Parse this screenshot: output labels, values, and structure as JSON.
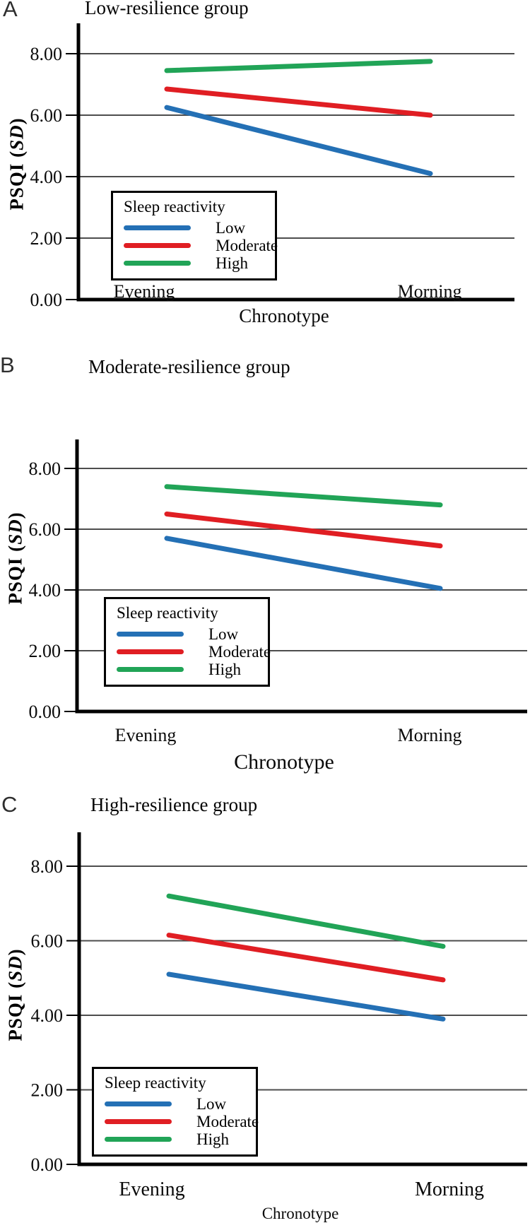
{
  "figure": {
    "y_axis_label": {
      "prefix": "PSQI (",
      "italic": "SD",
      "suffix": ")"
    },
    "x_axis_label": "Chronotype",
    "legend_title": "Sleep reactivity",
    "colors": {
      "low": "#2470b5",
      "moderate": "#e01e23",
      "high": "#21a457",
      "grid": "#4d4d4d",
      "axis": "#000000"
    }
  },
  "chart_data": [
    {
      "type": "line",
      "panel": "A",
      "title": "Low-resilience group",
      "xlabel": "Chronotype",
      "ylabel": "PSQI (SD)",
      "categories": [
        "Evening",
        "Morning"
      ],
      "yticks": [
        "0.00",
        "2.00",
        "4.00",
        "6.00",
        "8.00"
      ],
      "ylim": [
        0,
        9
      ],
      "grid": true,
      "legend_title": "Sleep reactivity",
      "legend_position": "lower-left",
      "series": [
        {
          "name": "Low",
          "color_key": "low",
          "values": [
            6.25,
            4.1
          ]
        },
        {
          "name": "Moderate",
          "color_key": "moderate",
          "values": [
            6.85,
            6.0
          ]
        },
        {
          "name": "High",
          "color_key": "high",
          "values": [
            7.45,
            7.75
          ]
        }
      ]
    },
    {
      "type": "line",
      "panel": "B",
      "title": "Moderate-resilience group",
      "xlabel": "Chronotype",
      "ylabel": "PSQI (SD)",
      "categories": [
        "Evening",
        "Morning"
      ],
      "yticks": [
        "0.00",
        "2.00",
        "4.00",
        "6.00",
        "8.00"
      ],
      "ylim": [
        0,
        9
      ],
      "grid": true,
      "legend_title": "Sleep reactivity",
      "legend_position": "lower-left",
      "series": [
        {
          "name": "Low",
          "color_key": "low",
          "values": [
            5.7,
            4.05
          ]
        },
        {
          "name": "Moderate",
          "color_key": "moderate",
          "values": [
            6.5,
            5.45
          ]
        },
        {
          "name": "High",
          "color_key": "high",
          "values": [
            7.4,
            6.8
          ]
        }
      ]
    },
    {
      "type": "line",
      "panel": "C",
      "title": "High-resilience group",
      "xlabel": "Chronotype",
      "ylabel": "PSQI (SD)",
      "categories": [
        "Evening",
        "Morning"
      ],
      "yticks": [
        "0.00",
        "2.00",
        "4.00",
        "6.00",
        "8.00"
      ],
      "ylim": [
        0,
        9
      ],
      "grid": true,
      "legend_title": "Sleep reactivity",
      "legend_position": "lower-left",
      "series": [
        {
          "name": "Low",
          "color_key": "low",
          "values": [
            5.1,
            3.9
          ]
        },
        {
          "name": "Moderate",
          "color_key": "moderate",
          "values": [
            6.15,
            4.95
          ]
        },
        {
          "name": "High",
          "color_key": "high",
          "values": [
            7.2,
            5.85
          ]
        }
      ]
    }
  ]
}
